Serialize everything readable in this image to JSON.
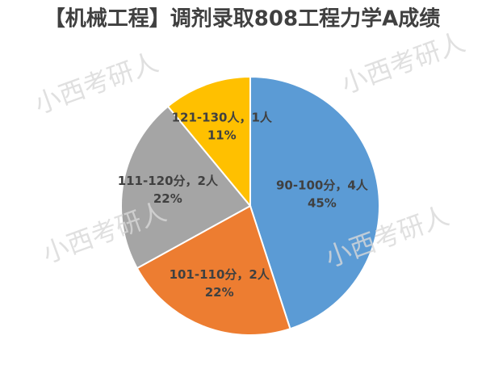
{
  "chart_data": {
    "type": "pie",
    "title": "【机械工程】调剂录取808工程力学A成绩",
    "categories": [
      "90-100分，4人",
      "101-110分，2人",
      "111-120分，2人",
      "121-130人，1人"
    ],
    "values": [
      45,
      22,
      22,
      11
    ],
    "value_labels": [
      "45%",
      "22%",
      "22%",
      "11%"
    ],
    "colors": [
      "#5b9bd5",
      "#ed7d31",
      "#a5a5a5",
      "#ffc000"
    ],
    "watermark": "小西考研人"
  }
}
